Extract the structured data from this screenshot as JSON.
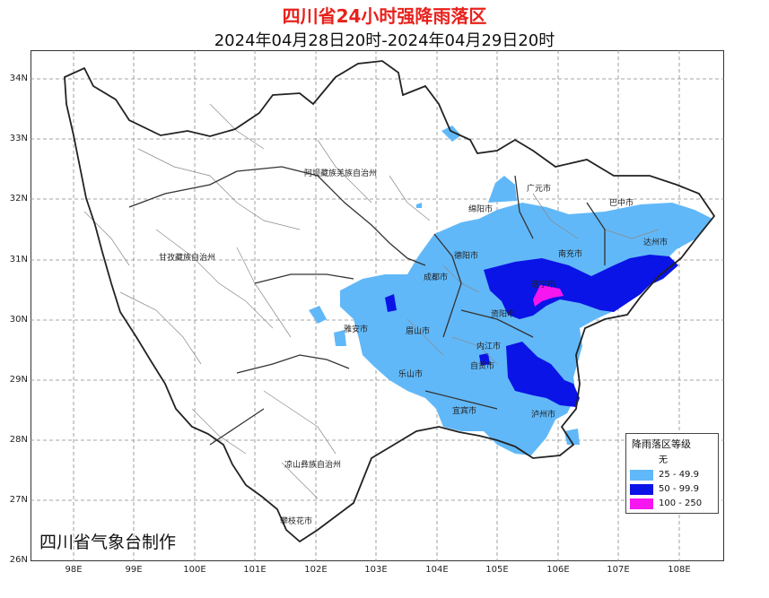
{
  "header": {
    "title": "四川省24小时强降雨落区",
    "subtitle": "2024年04月28日20时-2024年04月29日20时"
  },
  "axes": {
    "lat_labels": [
      "34N",
      "33N",
      "32N",
      "31N",
      "30N",
      "29N",
      "28N",
      "27N",
      "26N"
    ],
    "lon_labels": [
      "98E",
      "99E",
      "100E",
      "101E",
      "102E",
      "103E",
      "104E",
      "105E",
      "106E",
      "107E",
      "108E"
    ]
  },
  "regions": {
    "aba": "阿坝藏族羌族自治州",
    "ganzi": "甘孜藏族自治州",
    "liangshan": "凉山彝族自治州",
    "guangyuan": "广元市",
    "bazhong": "巴中市",
    "mianyang": "绵阳市",
    "deyang": "德阳市",
    "nanchong": "南充市",
    "dazhou": "达州市",
    "chengdu": "成都市",
    "suining": "遂宁市",
    "ziyang": "资阳市",
    "yaan": "雅安市",
    "meishan": "眉山市",
    "neijiang": "内江市",
    "leshan": "乐山市",
    "zigong": "自贡市",
    "yibin": "宜宾市",
    "luzhou": "泸州市",
    "panzhihua": "攀枝花市"
  },
  "legend": {
    "title": "降雨落区等级",
    "items": [
      {
        "label": "无",
        "color": "#ffffff"
      },
      {
        "label": "25 - 49.9",
        "color": "#61b8f8"
      },
      {
        "label": "50 - 99.9",
        "color": "#0a14e6"
      },
      {
        "label": "100 - 250",
        "color": "#f516f0"
      }
    ]
  },
  "credit": "四川省气象台制作",
  "colors": {
    "title": "#e8211c",
    "rain_25": "#61b8f8",
    "rain_50": "#0a14e6",
    "rain_100": "#f516f0"
  }
}
